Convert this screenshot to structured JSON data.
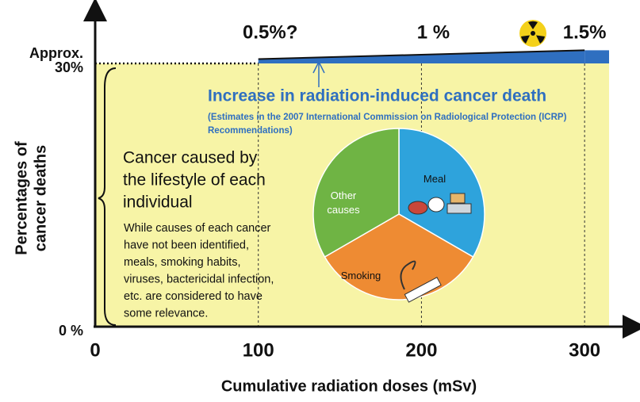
{
  "chart_data": [
    {
      "type": "band",
      "xlabel": "Cumulative radiation doses (mSv)",
      "ylabel": [
        "Percentages of",
        "cancer deaths"
      ],
      "xlim": [
        0,
        315
      ],
      "ylim": [
        0,
        36
      ],
      "xticks": [
        0,
        100,
        200,
        300
      ],
      "yticks": [
        {
          "value": 0,
          "label": "0 %"
        },
        {
          "value": 30,
          "label": "30%"
        }
      ],
      "ytick_note": "Approx.",
      "base": 30,
      "background": "#f7f4a6",
      "grid": true,
      "series": [
        {
          "name": "Increase in radiation-induced cancer death",
          "color": "#2f6fc0",
          "x": [
            100,
            200,
            300
          ],
          "values": [
            0.5,
            1,
            1.5
          ],
          "value_labels": [
            "0.5%?",
            "1 %",
            "1.5%"
          ]
        }
      ],
      "note": [
        "(Estimates in the 2007 International Commission on Radiological Protection (ICRP)",
        "Recommendations)"
      ],
      "annotation": [
        "Cancer caused by",
        "the lifestyle of each",
        "individual"
      ],
      "annotation_detail": [
        "While causes of each cancer",
        "have not been identified,",
        "meals, smoking habits,",
        "viruses, bactericidal infection,",
        "etc. are considered to have",
        "some relevance."
      ]
    },
    {
      "type": "pie",
      "categories": [
        "Meal",
        "Smoking",
        "Other causes"
      ],
      "values": [
        33.3,
        33.3,
        33.3
      ],
      "colors": [
        "#2ea3dc",
        "#ee8b33",
        "#6fb444"
      ]
    }
  ]
}
